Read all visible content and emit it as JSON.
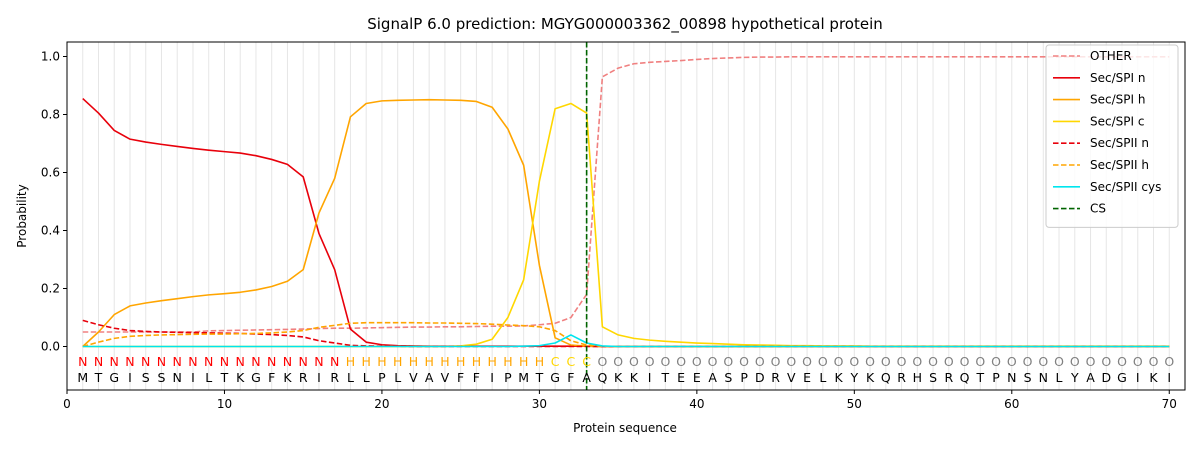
{
  "chart_data": {
    "type": "line",
    "title": "SignalP 6.0 prediction: MGYG000003362_00898 hypothetical protein",
    "xlabel": "Protein sequence",
    "ylabel": "Probability",
    "xlim": [
      0,
      71
    ],
    "ylim": [
      -0.15,
      1.05
    ],
    "xticks": [
      0,
      10,
      20,
      30,
      40,
      50,
      60,
      70
    ],
    "yticks": [
      0.0,
      0.2,
      0.4,
      0.6,
      0.8,
      1.0
    ],
    "ytick_labels": [
      "0.0",
      "0.2",
      "0.4",
      "0.6",
      "0.8",
      "1.0"
    ],
    "legend_position": "top-right",
    "vertical_gridlines_every_position": true,
    "cleavage_site": {
      "name": "CS",
      "x": 33,
      "color": "#006400",
      "style": "dashed"
    },
    "sequence": [
      "M",
      "T",
      "G",
      "I",
      "S",
      "S",
      "N",
      "I",
      "L",
      "T",
      "K",
      "G",
      "F",
      "K",
      "R",
      "I",
      "R",
      "L",
      "L",
      "P",
      "L",
      "V",
      "A",
      "V",
      "F",
      "F",
      "I",
      "P",
      "M",
      "T",
      "G",
      "F",
      "A",
      "Q",
      "K",
      "K",
      "I",
      "T",
      "E",
      "E",
      "A",
      "S",
      "P",
      "D",
      "R",
      "V",
      "E",
      "L",
      "K",
      "Y",
      "K",
      "Q",
      "R",
      "H",
      "S",
      "R",
      "Q",
      "T",
      "P",
      "N",
      "S",
      "N",
      "L",
      "Y",
      "A",
      "D",
      "G",
      "I",
      "K",
      "I"
    ],
    "regions": [
      "N",
      "N",
      "N",
      "N",
      "N",
      "N",
      "N",
      "N",
      "N",
      "N",
      "N",
      "N",
      "N",
      "N",
      "N",
      "N",
      "N",
      "H",
      "H",
      "H",
      "H",
      "H",
      "H",
      "H",
      "H",
      "H",
      "H",
      "H",
      "H",
      "H",
      "C",
      "C",
      "C",
      "O",
      "O",
      "O",
      "O",
      "O",
      "O",
      "O",
      "O",
      "O",
      "O",
      "O",
      "O",
      "O",
      "O",
      "O",
      "O",
      "O",
      "O",
      "O",
      "O",
      "O",
      "O",
      "O",
      "O",
      "O",
      "O",
      "O",
      "O",
      "O",
      "O",
      "O",
      "O",
      "O",
      "O",
      "O",
      "O",
      "O",
      "O",
      "O"
    ],
    "region_colors": {
      "N": "#ff0000",
      "H": "#ffa500",
      "C": "#ffd700",
      "O": "#808080"
    },
    "x": [
      1,
      2,
      3,
      4,
      5,
      6,
      7,
      8,
      9,
      10,
      11,
      12,
      13,
      14,
      15,
      16,
      17,
      18,
      19,
      20,
      21,
      22,
      23,
      24,
      25,
      26,
      27,
      28,
      29,
      30,
      31,
      32,
      33,
      34,
      35,
      36,
      37,
      38,
      39,
      40,
      41,
      42,
      43,
      44,
      45,
      46,
      47,
      48,
      49,
      50,
      51,
      52,
      53,
      54,
      55,
      56,
      57,
      58,
      59,
      60,
      61,
      62,
      63,
      64,
      65,
      66,
      67,
      68,
      69,
      70
    ],
    "series": [
      {
        "name": "OTHER",
        "color": "#f08080",
        "dash": "dashed",
        "values": [
          0.05,
          0.05,
          0.05,
          0.05,
          0.05,
          0.05,
          0.05,
          0.05,
          0.054,
          0.055,
          0.056,
          0.057,
          0.058,
          0.059,
          0.06,
          0.062,
          0.063,
          0.063,
          0.064,
          0.065,
          0.066,
          0.067,
          0.067,
          0.068,
          0.068,
          0.069,
          0.07,
          0.07,
          0.071,
          0.075,
          0.08,
          0.1,
          0.18,
          0.93,
          0.96,
          0.975,
          0.98,
          0.983,
          0.986,
          0.99,
          0.993,
          0.995,
          0.997,
          0.998,
          0.998,
          0.999,
          0.999,
          0.999,
          0.999,
          0.999,
          0.999,
          0.999,
          0.999,
          0.999,
          0.999,
          0.999,
          0.999,
          0.999,
          0.999,
          0.999,
          0.999,
          0.999,
          0.999,
          0.999,
          0.999,
          0.999,
          0.999,
          0.999,
          0.999,
          0.999
        ]
      },
      {
        "name": "Sec/SPI n",
        "color": "#e8000b",
        "dash": "solid",
        "values": [
          0.855,
          0.805,
          0.745,
          0.715,
          0.705,
          0.697,
          0.69,
          0.683,
          0.677,
          0.672,
          0.667,
          0.658,
          0.645,
          0.628,
          0.585,
          0.39,
          0.265,
          0.06,
          0.015,
          0.006,
          0.003,
          0.002,
          0.001,
          0.001,
          0.001,
          0.001,
          0.001,
          0.001,
          0.001,
          0.001,
          0.001,
          0.001,
          0.001,
          0.0,
          0.0,
          0.0,
          0.0,
          0.0,
          0.0,
          0.0,
          0.0,
          0.0,
          0.0,
          0.0,
          0.0,
          0.0,
          0.0,
          0.0,
          0.0,
          0.0,
          0.0,
          0.0,
          0.0,
          0.0,
          0.0,
          0.0,
          0.0,
          0.0,
          0.0,
          0.0,
          0.0,
          0.0,
          0.0,
          0.0,
          0.0,
          0.0,
          0.0,
          0.0,
          0.0,
          0.0
        ]
      },
      {
        "name": "Sec/SPI h",
        "color": "#ffa500",
        "dash": "solid",
        "values": [
          0.0,
          0.05,
          0.11,
          0.14,
          0.15,
          0.158,
          0.165,
          0.172,
          0.178,
          0.182,
          0.187,
          0.195,
          0.207,
          0.225,
          0.265,
          0.46,
          0.58,
          0.792,
          0.838,
          0.847,
          0.849,
          0.85,
          0.851,
          0.85,
          0.849,
          0.845,
          0.825,
          0.75,
          0.625,
          0.28,
          0.03,
          0.005,
          0.001,
          0.0,
          0.0,
          0.0,
          0.0,
          0.0,
          0.0,
          0.0,
          0.0,
          0.0,
          0.0,
          0.0,
          0.0,
          0.0,
          0.0,
          0.0,
          0.0,
          0.0,
          0.0,
          0.0,
          0.0,
          0.0,
          0.0,
          0.0,
          0.0,
          0.0,
          0.0,
          0.0,
          0.0,
          0.0,
          0.0,
          0.0,
          0.0,
          0.0,
          0.0,
          0.0,
          0.0,
          0.0
        ]
      },
      {
        "name": "Sec/SPI c",
        "color": "#ffd700",
        "dash": "solid",
        "values": [
          0.0,
          0.0,
          0.0,
          0.0,
          0.0,
          0.0,
          0.0,
          0.0,
          0.0,
          0.0,
          0.0,
          0.0,
          0.0,
          0.0,
          0.0,
          0.0,
          0.0,
          0.0,
          0.0,
          0.0,
          0.0,
          0.0,
          0.0,
          0.0,
          0.002,
          0.008,
          0.025,
          0.1,
          0.23,
          0.57,
          0.82,
          0.838,
          0.805,
          0.068,
          0.04,
          0.028,
          0.022,
          0.018,
          0.015,
          0.012,
          0.01,
          0.008,
          0.006,
          0.005,
          0.004,
          0.003,
          0.003,
          0.002,
          0.002,
          0.002,
          0.001,
          0.001,
          0.001,
          0.001,
          0.001,
          0.001,
          0.001,
          0.001,
          0.001,
          0.001,
          0.001,
          0.001,
          0.001,
          0.001,
          0.001,
          0.001,
          0.001,
          0.001,
          0.001,
          0.001
        ]
      },
      {
        "name": "Sec/SPII n",
        "color": "#e8000b",
        "dash": "dashed",
        "values": [
          0.09,
          0.075,
          0.063,
          0.055,
          0.052,
          0.05,
          0.049,
          0.048,
          0.047,
          0.046,
          0.045,
          0.043,
          0.041,
          0.038,
          0.033,
          0.02,
          0.012,
          0.004,
          0.002,
          0.001,
          0.001,
          0.0,
          0.0,
          0.0,
          0.0,
          0.0,
          0.0,
          0.0,
          0.0,
          0.0,
          0.0,
          0.0,
          0.0,
          0.0,
          0.0,
          0.0,
          0.0,
          0.0,
          0.0,
          0.0,
          0.0,
          0.0,
          0.0,
          0.0,
          0.0,
          0.0,
          0.0,
          0.0,
          0.0,
          0.0,
          0.0,
          0.0,
          0.0,
          0.0,
          0.0,
          0.0,
          0.0,
          0.0,
          0.0,
          0.0,
          0.0,
          0.0,
          0.0,
          0.0,
          0.0,
          0.0,
          0.0,
          0.0,
          0.0,
          0.0
        ]
      },
      {
        "name": "Sec/SPII h",
        "color": "#ffa500",
        "dash": "dashed",
        "values": [
          0.0,
          0.015,
          0.028,
          0.035,
          0.038,
          0.04,
          0.041,
          0.042,
          0.043,
          0.043,
          0.044,
          0.045,
          0.047,
          0.05,
          0.055,
          0.066,
          0.073,
          0.08,
          0.082,
          0.082,
          0.082,
          0.082,
          0.081,
          0.081,
          0.08,
          0.079,
          0.077,
          0.074,
          0.072,
          0.068,
          0.055,
          0.02,
          0.005,
          0.001,
          0.0,
          0.0,
          0.0,
          0.0,
          0.0,
          0.0,
          0.0,
          0.0,
          0.0,
          0.0,
          0.0,
          0.0,
          0.0,
          0.0,
          0.0,
          0.0,
          0.0,
          0.0,
          0.0,
          0.0,
          0.0,
          0.0,
          0.0,
          0.0,
          0.0,
          0.0,
          0.0,
          0.0,
          0.0,
          0.0,
          0.0,
          0.0,
          0.0,
          0.0,
          0.0,
          0.0
        ]
      },
      {
        "name": "Sec/SPII cys",
        "color": "#00e5ee",
        "dash": "solid",
        "values": [
          0.0,
          0.0,
          0.0,
          0.0,
          0.0,
          0.0,
          0.0,
          0.0,
          0.0,
          0.0,
          0.0,
          0.0,
          0.0,
          0.0,
          0.0,
          0.0,
          0.0,
          0.0,
          0.0,
          0.0,
          0.0,
          0.0,
          0.0,
          0.0,
          0.0,
          0.0,
          0.0,
          0.0,
          0.001,
          0.003,
          0.012,
          0.04,
          0.012,
          0.002,
          0.0,
          0.0,
          0.0,
          0.0,
          0.0,
          0.0,
          0.0,
          0.0,
          0.0,
          0.0,
          0.0,
          0.0,
          0.0,
          0.0,
          0.0,
          0.0,
          0.0,
          0.0,
          0.0,
          0.0,
          0.0,
          0.0,
          0.0,
          0.0,
          0.0,
          0.0,
          0.0,
          0.0,
          0.0,
          0.0,
          0.0,
          0.0,
          0.0,
          0.0,
          0.0,
          0.0
        ]
      }
    ]
  }
}
